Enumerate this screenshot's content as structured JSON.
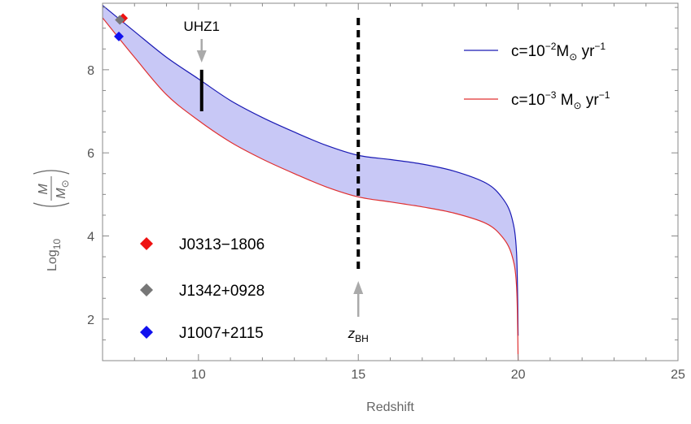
{
  "chart_data": {
    "type": "line",
    "xlabel": "Redshift",
    "ylabel": {
      "main": "Log",
      "sub": "10",
      "num": "M",
      "den": "M",
      "den_sub": "⊙"
    },
    "xlim": [
      7,
      25
    ],
    "ylim": [
      1,
      9.6
    ],
    "x_ticks": [
      10,
      15,
      20,
      25
    ],
    "y_ticks": [
      2,
      4,
      6,
      8
    ],
    "grid": false,
    "legend_position": "top-right",
    "series": [
      {
        "name": "c=10⁻² M⊙ yr⁻¹",
        "label_parts": {
          "base": "c=10",
          "exp": "−2",
          "unit": "M",
          "unit_sub": "⊙",
          "unit_rest": " yr",
          "unit_exp": "−1"
        },
        "color": "#1a1ab4",
        "x": [
          7,
          8,
          9,
          10,
          11,
          12,
          13,
          14,
          15,
          16,
          17,
          18,
          19,
          19.5,
          19.8,
          19.95,
          20
        ],
        "y": [
          9.55,
          8.92,
          8.3,
          7.78,
          7.26,
          6.85,
          6.5,
          6.18,
          5.94,
          5.84,
          5.73,
          5.56,
          5.27,
          4.92,
          4.45,
          3.6,
          1.6
        ]
      },
      {
        "name": "c=10⁻³ M⊙ yr⁻¹",
        "label_parts": {
          "base": "c=10",
          "exp": "−3",
          "unit": " M",
          "unit_sub": "⊙",
          "unit_rest": " yr",
          "unit_exp": "−1"
        },
        "color": "#e03030",
        "x": [
          7,
          8,
          9,
          10,
          11,
          12,
          13,
          14,
          15,
          16,
          17,
          18,
          19,
          19.5,
          19.8,
          19.95,
          20
        ],
        "y": [
          9.25,
          8.3,
          7.4,
          6.78,
          6.26,
          5.85,
          5.5,
          5.18,
          4.94,
          4.82,
          4.7,
          4.55,
          4.3,
          3.98,
          3.55,
          2.8,
          1.0
        ]
      }
    ],
    "band_fill": "#c8c8f6",
    "points": [
      {
        "name": "J0313−1806",
        "x": 7.64,
        "y": 9.24,
        "color": "#ee1111"
      },
      {
        "name": "J1342+0928",
        "x": 7.54,
        "y": 9.2,
        "color": "#777777"
      },
      {
        "name": "J1007+2115",
        "x": 7.51,
        "y": 8.8,
        "color": "#1111ee"
      }
    ],
    "annotations": {
      "uhz1": {
        "label": "UHZ1",
        "x": 10.1,
        "y_low": 7.0,
        "y_high": 8.0,
        "arrow_color": "#aaaaaa"
      },
      "zbh": {
        "label_main": "z",
        "label_sub": "BH",
        "x": 15.0,
        "y_low": 3.1,
        "y_high": 9.6,
        "arrow_color": "#aaaaaa"
      }
    }
  }
}
